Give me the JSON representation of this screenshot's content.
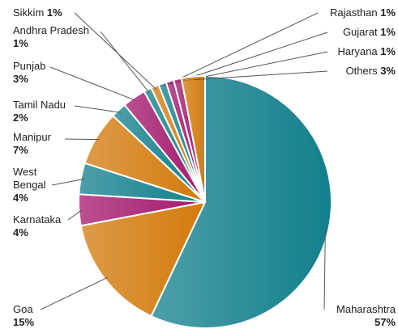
{
  "chart_data": {
    "type": "pie",
    "categories": [
      "Maharashtra",
      "Goa",
      "Karnataka",
      "West Bengal",
      "Manipur",
      "Tamil Nadu",
      "Punjab",
      "Andhra Pradesh",
      "Sikkim",
      "Rajasthan",
      "Gujarat",
      "Haryana",
      "Others"
    ],
    "values": [
      57,
      15,
      4,
      4,
      7,
      2,
      3,
      1,
      1,
      1,
      1,
      1,
      3
    ],
    "value_labels": [
      "57%",
      "15%",
      "4%",
      "4%",
      "7%",
      "2%",
      "3%",
      "1%",
      "1%",
      "1%",
      "1%",
      "1%",
      "3%"
    ],
    "colors": [
      "#127f8c",
      "#d27a0b",
      "#a3176c",
      "#127f8c",
      "#d27a0b",
      "#127f8c",
      "#a3176c",
      "#127f8c",
      "#d27a0b",
      "#127f8c",
      "#a3176c",
      "#a3176c",
      "#d27a0b"
    ]
  }
}
